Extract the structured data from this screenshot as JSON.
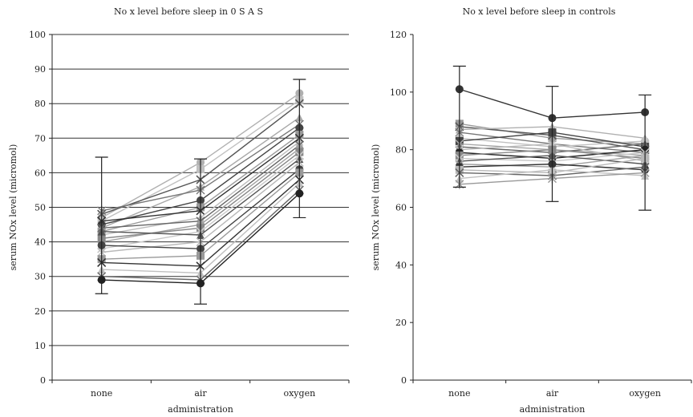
{
  "chart_data": [
    {
      "type": "line",
      "title": "No x level before sleep in 0 S A S",
      "xlabel": "administration",
      "ylabel": "serum NOx level (micromol)",
      "categories": [
        "none",
        "air",
        "oxygen"
      ],
      "ylim": [
        0,
        100
      ],
      "yticks": [
        0,
        10,
        20,
        30,
        40,
        50,
        60,
        70,
        80,
        90,
        100
      ],
      "grid": true,
      "error_bars": [
        {
          "category": "none",
          "low": 25,
          "high": 64.5
        },
        {
          "category": "air",
          "low": 22,
          "high": 64
        },
        {
          "category": "oxygen",
          "low": 47,
          "high": 87
        }
      ],
      "series": [
        {
          "values": [
            47,
            63,
            83
          ],
          "color": "#b0b0b0"
        },
        {
          "values": [
            46,
            61,
            81
          ],
          "color": "#c0c0c0"
        },
        {
          "values": [
            48,
            58,
            80
          ],
          "color": "#555555"
        },
        {
          "values": [
            44,
            56,
            76
          ],
          "color": "#a8a8a8"
        },
        {
          "values": [
            49,
            55,
            74
          ],
          "color": "#777777"
        },
        {
          "values": [
            45,
            52,
            73
          ],
          "color": "#444444"
        },
        {
          "values": [
            43,
            50,
            71
          ],
          "color": "#999999"
        },
        {
          "values": [
            46,
            49,
            70
          ],
          "color": "#333333"
        },
        {
          "values": [
            42,
            47,
            69
          ],
          "color": "#bbbbbb"
        },
        {
          "values": [
            44,
            46,
            68
          ],
          "color": "#666666"
        },
        {
          "values": [
            40,
            45,
            67
          ],
          "color": "#a0a0a0"
        },
        {
          "values": [
            41,
            44,
            66
          ],
          "color": "#888888"
        },
        {
          "values": [
            38,
            43,
            65
          ],
          "color": "#c8c8c8"
        },
        {
          "values": [
            43,
            42,
            64
          ],
          "color": "#555555"
        },
        {
          "values": [
            37,
            40,
            63
          ],
          "color": "#b8b8b8"
        },
        {
          "values": [
            39,
            38,
            61
          ],
          "color": "#444444"
        },
        {
          "values": [
            35,
            36,
            60
          ],
          "color": "#999999"
        },
        {
          "values": [
            34,
            33,
            58
          ],
          "color": "#333333"
        },
        {
          "values": [
            32,
            31,
            57
          ],
          "color": "#c0c0c0"
        },
        {
          "values": [
            30,
            29,
            55
          ],
          "color": "#666666"
        },
        {
          "values": [
            29,
            28,
            54
          ],
          "color": "#222222"
        }
      ]
    },
    {
      "type": "line",
      "title": "No x level before sleep in controls",
      "xlabel": "administration",
      "ylabel": "serum NOx level (micromol)",
      "categories": [
        "none",
        "air",
        "oxygen"
      ],
      "ylim": [
        0,
        120
      ],
      "yticks": [
        0,
        20,
        40,
        60,
        80,
        100,
        120
      ],
      "grid": false,
      "error_bars": [
        {
          "category": "none",
          "low": 67,
          "high": 109
        },
        {
          "category": "air",
          "low": 62,
          "high": 102
        },
        {
          "category": "oxygen",
          "low": 59,
          "high": 99
        }
      ],
      "series": [
        {
          "values": [
            101,
            91,
            93
          ],
          "color": "#333333"
        },
        {
          "values": [
            89,
            84,
            82
          ],
          "color": "#999999"
        },
        {
          "values": [
            88,
            85,
            80
          ],
          "color": "#555555"
        },
        {
          "values": [
            87,
            88,
            84
          ],
          "color": "#b0b0b0"
        },
        {
          "values": [
            86,
            82,
            79
          ],
          "color": "#777777"
        },
        {
          "values": [
            84,
            81,
            83
          ],
          "color": "#c0c0c0"
        },
        {
          "values": [
            83,
            86,
            81
          ],
          "color": "#444444"
        },
        {
          "values": [
            82,
            80,
            78
          ],
          "color": "#a8a8a8"
        },
        {
          "values": [
            81,
            79,
            82
          ],
          "color": "#666666"
        },
        {
          "values": [
            80,
            82,
            76
          ],
          "color": "#bbbbbb"
        },
        {
          "values": [
            79,
            77,
            80
          ],
          "color": "#222222"
        },
        {
          "values": [
            78,
            80,
            77
          ],
          "color": "#888888"
        },
        {
          "values": [
            77,
            76,
            79
          ],
          "color": "#c8c8c8"
        },
        {
          "values": [
            76,
            78,
            75
          ],
          "color": "#555555"
        },
        {
          "values": [
            75,
            74,
            78
          ],
          "color": "#a0a0a0"
        },
        {
          "values": [
            74,
            75,
            73
          ],
          "color": "#333333"
        },
        {
          "values": [
            73,
            72,
            77
          ],
          "color": "#b8b8b8"
        },
        {
          "values": [
            72,
            71,
            74
          ],
          "color": "#666666"
        },
        {
          "values": [
            70,
            73,
            71
          ],
          "color": "#c0c0c0"
        },
        {
          "values": [
            68,
            70,
            72
          ],
          "color": "#999999"
        }
      ]
    }
  ]
}
